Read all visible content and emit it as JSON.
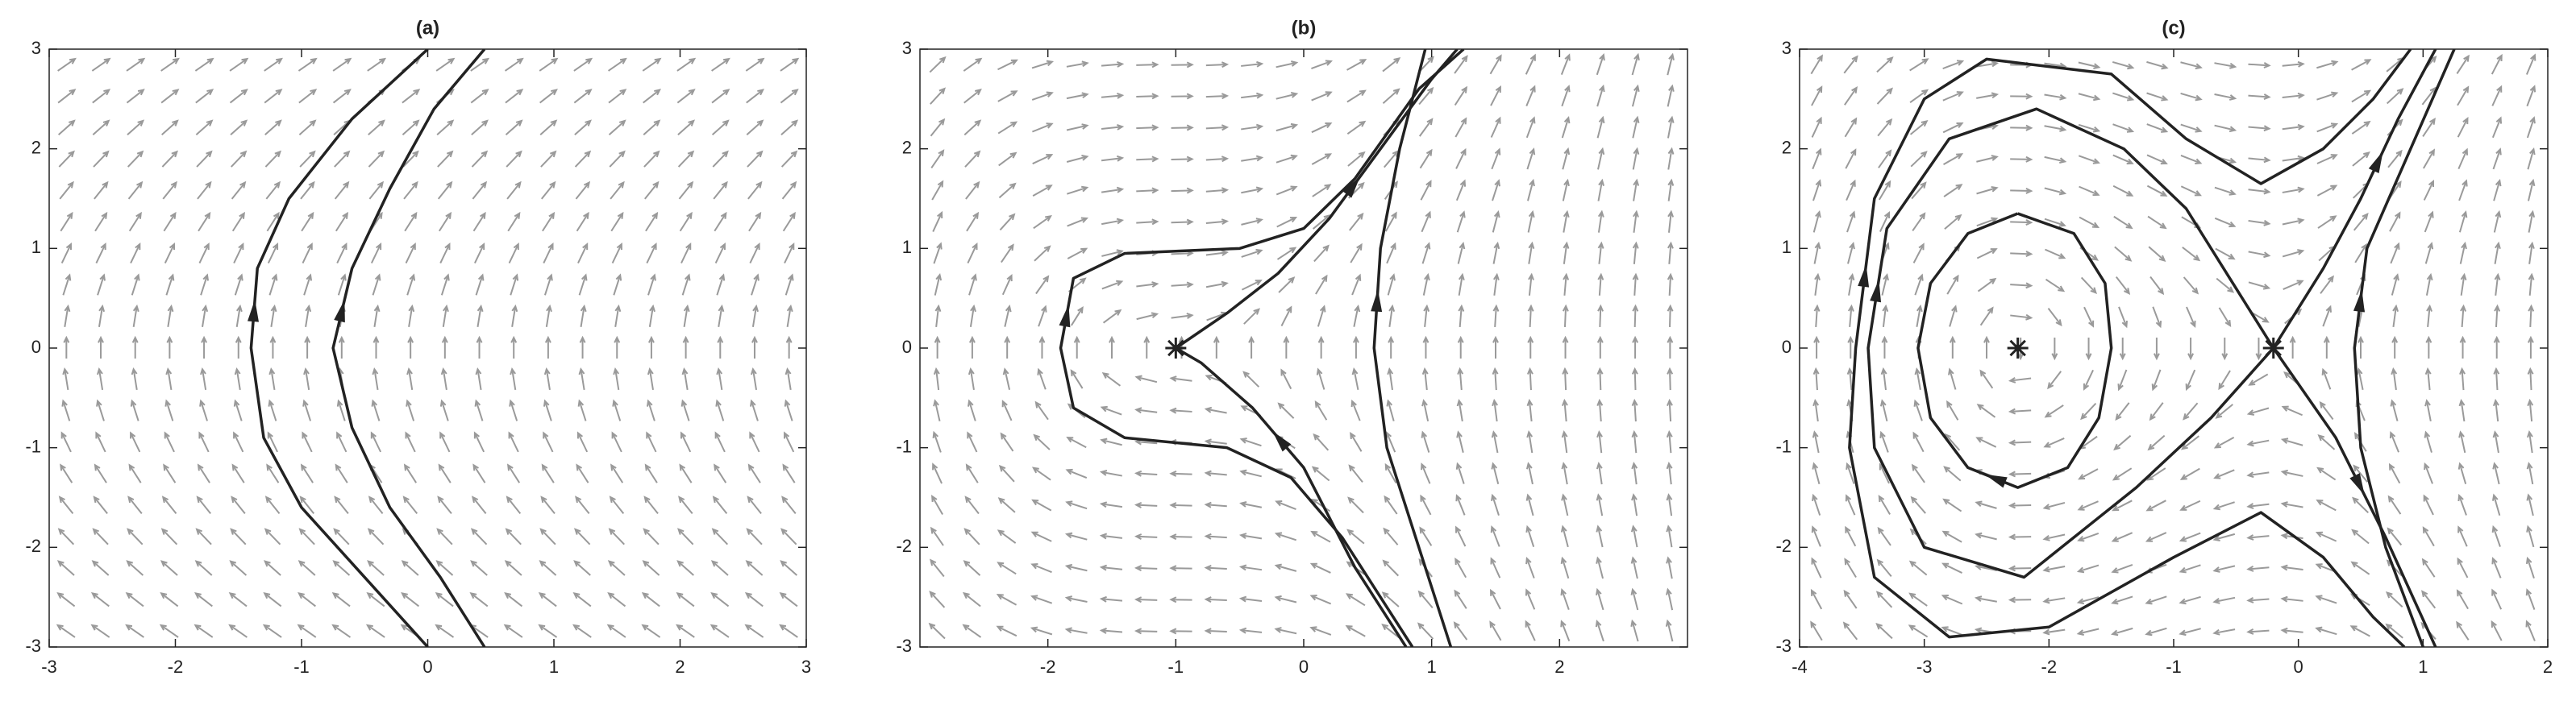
{
  "chart_data": [
    {
      "type": "line",
      "title": "(a)",
      "xlim": [
        -3,
        3
      ],
      "ylim": [
        -3,
        3
      ],
      "xticks": [
        -3,
        -2,
        -1,
        0,
        1,
        2,
        3
      ],
      "yticks": [
        -3,
        -2,
        -1,
        0,
        1,
        2,
        3
      ],
      "series": [
        {
          "color": "#222222",
          "x": [
            0,
            -0.5,
            -1,
            -1.3,
            -1.4,
            -1.35,
            -1.1,
            -0.6,
            0
          ],
          "values": [
            -3,
            -2.3,
            -1.6,
            -0.9,
            0,
            0.8,
            1.5,
            2.3,
            3
          ]
        },
        {
          "color": "#222222",
          "x": [
            0.45,
            0.1,
            -0.3,
            -0.6,
            -0.75,
            -0.6,
            -0.3,
            0.05,
            0.45
          ],
          "values": [
            -3,
            -2.3,
            -1.6,
            -0.8,
            0,
            0.8,
            1.6,
            2.4,
            3
          ]
        }
      ]
    },
    {
      "type": "line",
      "title": "(b)",
      "xlim": [
        -3,
        3
      ],
      "ylim": [
        -3,
        3
      ],
      "xticks": [
        -2,
        -1,
        0,
        1,
        2
      ],
      "yticks": [
        -3,
        -2,
        -1,
        0,
        1,
        2,
        3
      ],
      "series": [
        {
          "color": "#222222",
          "x": [
            -1,
            -0.6,
            -0.2,
            0.2,
            0.6,
            1.0,
            1.2
          ],
          "values": [
            0,
            0.35,
            0.75,
            1.3,
            2.0,
            2.7,
            3
          ]
        },
        {
          "color": "#222222",
          "x": [
            0.85,
            0.6,
            0.3,
            -0.1,
            -0.6,
            -1.4,
            -1.8,
            -1.9,
            -1.8,
            -1.4,
            -0.5,
            0,
            0.4,
            0.9,
            1.25
          ],
          "values": [
            -3,
            -2.5,
            -1.9,
            -1.3,
            -1.0,
            -0.9,
            -0.6,
            0,
            0.7,
            0.95,
            1.0,
            1.2,
            1.7,
            2.6,
            3
          ]
        },
        {
          "color": "#222222",
          "x": [
            0.8,
            0.4,
            0,
            -0.4,
            -0.8,
            -1
          ],
          "values": [
            -3,
            -2.2,
            -1.2,
            -0.6,
            -0.15,
            0
          ]
        },
        {
          "color": "#222222",
          "x": [
            1.15,
            0.9,
            0.65,
            0.55,
            0.6,
            0.75,
            0.95
          ],
          "values": [
            -3,
            -2,
            -1,
            0,
            1,
            2,
            3
          ]
        },
        {
          "color": "#222222",
          "marker": "asterisk",
          "x": [
            -1
          ],
          "values": [
            0
          ]
        }
      ]
    },
    {
      "type": "line",
      "title": "(c)",
      "xlim": [
        -4,
        2
      ],
      "ylim": [
        -3,
        3
      ],
      "xticks": [
        -4,
        -3,
        -2,
        -1,
        0,
        1,
        2
      ],
      "yticks": [
        -3,
        -2,
        -1,
        0,
        1,
        2,
        3
      ],
      "series": [
        {
          "color": "#222222",
          "x": [
            -2.25,
            -1.8,
            -1.55,
            -1.5,
            -1.6,
            -1.85,
            -2.25,
            -2.65,
            -2.95,
            -3.05,
            -2.95,
            -2.65,
            -2.25
          ],
          "values": [
            1.35,
            1.15,
            0.65,
            0,
            -0.7,
            -1.2,
            -1.4,
            -1.2,
            -0.7,
            0,
            0.65,
            1.15,
            1.35
          ]
        },
        {
          "color": "#222222",
          "x": [
            -0.2,
            -0.7,
            -1.3,
            -2.2,
            -3.0,
            -3.4,
            -3.45,
            -3.3,
            -2.8,
            -2.1,
            -1.4,
            -0.9,
            -0.5,
            -0.2
          ],
          "values": [
            0,
            -0.7,
            -1.4,
            -2.3,
            -2.0,
            -1,
            0,
            1.2,
            2.1,
            2.4,
            2.0,
            1.4,
            0.6,
            0
          ]
        },
        {
          "color": "#222222",
          "x": [
            -0.2,
            0.2,
            0.5,
            0.8,
            1.1
          ],
          "values": [
            0,
            0.8,
            1.5,
            2.3,
            3
          ]
        },
        {
          "color": "#222222",
          "x": [
            -0.2,
            0.3,
            0.7,
            1.1
          ],
          "values": [
            0,
            -0.9,
            -1.9,
            -3
          ]
        },
        {
          "color": "#222222",
          "x": [
            0.85,
            0.6,
            0.2,
            -0.3,
            -1,
            -2,
            -2.8,
            -3.4,
            -3.6,
            -3.55,
            -3.4,
            -3,
            -2.5,
            -1.5,
            -0.9,
            -0.3,
            0.2,
            0.6,
            0.9
          ],
          "values": [
            -3,
            -2.7,
            -2.1,
            -1.65,
            -2.1,
            -2.8,
            -2.9,
            -2.3,
            -1,
            0,
            1.5,
            2.5,
            2.9,
            2.75,
            2.1,
            1.65,
            2.0,
            2.5,
            3
          ]
        },
        {
          "color": "#222222",
          "x": [
            1.0,
            0.7,
            0.5,
            0.45,
            0.55,
            0.9,
            1.25
          ],
          "values": [
            -3,
            -2,
            -1,
            0,
            1,
            2,
            3
          ]
        },
        {
          "color": "#222222",
          "marker": "asterisk",
          "x": [
            -2.25
          ],
          "values": [
            0
          ]
        },
        {
          "color": "#222222",
          "marker": "asterisk",
          "x": [
            -0.2
          ],
          "values": [
            0
          ]
        }
      ]
    }
  ]
}
